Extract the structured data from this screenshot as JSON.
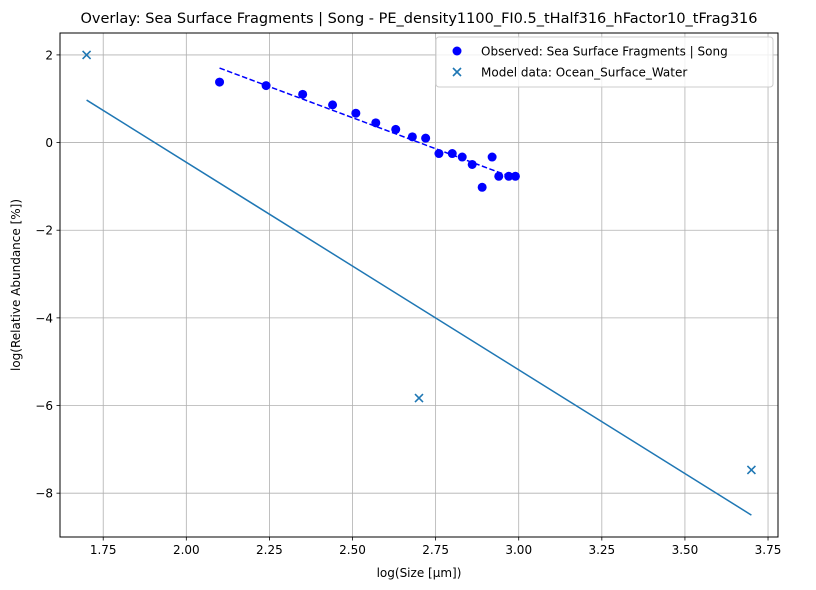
{
  "chart_data": {
    "type": "scatter",
    "title": "Overlay: Sea Surface Fragments | Song - PE_density1100_FI0.5_tHalf316_hFactor10_tFrag316",
    "xlabel": "log(Size [µm])",
    "ylabel": "log(Relative Abundance [%])",
    "xlim": [
      1.62,
      3.78
    ],
    "ylim": [
      -9.0,
      2.5
    ],
    "xticks": [
      1.75,
      2.0,
      2.25,
      2.5,
      2.75,
      3.0,
      3.25,
      3.5,
      3.75
    ],
    "xtick_labels": [
      "1.75",
      "2.00",
      "2.25",
      "2.50",
      "2.75",
      "3.00",
      "3.25",
      "3.50",
      "3.75"
    ],
    "yticks": [
      2,
      0,
      -2,
      -4,
      -6,
      -8
    ],
    "ytick_labels": [
      "2",
      "0",
      "−2",
      "−4",
      "−6",
      "−8"
    ],
    "grid": true,
    "legend_position": "top-right",
    "series": [
      {
        "name": "Observed: Sea Surface Fragments | Song",
        "kind": "scatter",
        "marker": "circle",
        "color": "#0000ff",
        "x": [
          2.1,
          2.24,
          2.35,
          2.44,
          2.51,
          2.57,
          2.63,
          2.68,
          2.72,
          2.76,
          2.8,
          2.83,
          2.86,
          2.89,
          2.92,
          2.94,
          2.97,
          2.99
        ],
        "y": [
          1.38,
          1.3,
          1.1,
          0.86,
          0.67,
          0.45,
          0.3,
          0.13,
          0.1,
          -0.25,
          -0.25,
          -0.33,
          -0.5,
          -1.02,
          -0.33,
          -0.77,
          -0.77,
          -0.77
        ]
      },
      {
        "kind": "line",
        "style": "dashed",
        "color": "#0000ff",
        "x": [
          2.1,
          2.99
        ],
        "y": [
          1.7,
          -0.82
        ]
      },
      {
        "name": "Model data: Ocean_Surface_Water",
        "kind": "scatter",
        "marker": "x",
        "color": "#1f77b4",
        "x": [
          1.7,
          2.7,
          3.7
        ],
        "y": [
          2.0,
          -5.83,
          -7.47
        ]
      },
      {
        "kind": "line",
        "style": "solid",
        "color": "#1f77b4",
        "x": [
          1.7,
          3.7
        ],
        "y": [
          0.97,
          -8.5
        ]
      }
    ]
  }
}
